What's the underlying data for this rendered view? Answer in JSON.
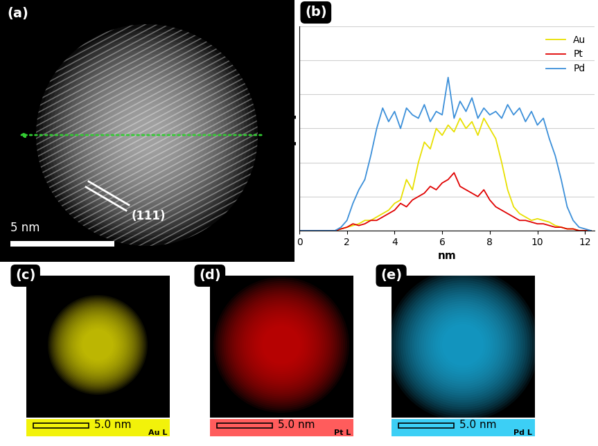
{
  "chart_data": {
    "type": "line",
    "title": "(b)",
    "x_label": "nm",
    "y_label": "[a.u.]",
    "x": [
      0,
      0.25,
      0.5,
      0.75,
      1.0,
      1.25,
      1.5,
      1.75,
      2.0,
      2.25,
      2.5,
      2.75,
      3.0,
      3.25,
      3.5,
      3.75,
      4.0,
      4.25,
      4.5,
      4.75,
      5.0,
      5.25,
      5.5,
      5.75,
      6.0,
      6.25,
      6.5,
      6.75,
      7.0,
      7.25,
      7.5,
      7.75,
      8.0,
      8.25,
      8.5,
      8.75,
      9.0,
      9.25,
      9.5,
      9.75,
      10.0,
      10.25,
      10.5,
      10.75,
      11.0,
      11.25,
      11.5,
      11.75,
      12.0,
      12.25
    ],
    "series": [
      {
        "name": "Au",
        "color": "#e8e000",
        "values": [
          0,
          0,
          0,
          0,
          0,
          0,
          0,
          0.05,
          0.1,
          0.15,
          0.2,
          0.3,
          0.3,
          0.4,
          0.5,
          0.6,
          0.8,
          0.9,
          1.5,
          1.2,
          2.0,
          2.6,
          2.4,
          3.0,
          2.8,
          3.1,
          2.9,
          3.3,
          3.0,
          3.2,
          2.8,
          3.3,
          3.0,
          2.7,
          2.0,
          1.2,
          0.7,
          0.5,
          0.4,
          0.3,
          0.35,
          0.3,
          0.25,
          0.15,
          0.1,
          0.05,
          0.05,
          0,
          0,
          0
        ]
      },
      {
        "name": "Pt",
        "color": "#e00000",
        "values": [
          0,
          0,
          0,
          0,
          0,
          0,
          0,
          0.05,
          0.1,
          0.2,
          0.15,
          0.2,
          0.3,
          0.3,
          0.4,
          0.5,
          0.6,
          0.8,
          0.7,
          0.9,
          1.0,
          1.1,
          1.3,
          1.2,
          1.4,
          1.5,
          1.7,
          1.3,
          1.2,
          1.1,
          1.0,
          1.2,
          0.9,
          0.7,
          0.6,
          0.5,
          0.4,
          0.3,
          0.3,
          0.25,
          0.2,
          0.2,
          0.15,
          0.1,
          0.1,
          0.05,
          0.05,
          0,
          0,
          0
        ]
      },
      {
        "name": "Pd",
        "color": "#3b8fd9",
        "values": [
          0,
          0,
          0,
          0,
          0,
          0,
          0,
          0.1,
          0.3,
          0.8,
          1.2,
          1.5,
          2.2,
          3.0,
          3.6,
          3.2,
          3.5,
          3.0,
          3.6,
          3.4,
          3.3,
          3.7,
          3.2,
          3.5,
          3.4,
          4.5,
          3.3,
          3.8,
          3.5,
          3.9,
          3.3,
          3.6,
          3.4,
          3.5,
          3.3,
          3.7,
          3.4,
          3.6,
          3.2,
          3.5,
          3.1,
          3.3,
          2.7,
          2.2,
          1.5,
          0.7,
          0.3,
          0.1,
          0.05,
          0
        ]
      }
    ],
    "xlim": [
      0,
      12.4
    ],
    "xticks": [
      0,
      2,
      4,
      6,
      8,
      10,
      12
    ],
    "ylim": [
      0,
      6
    ],
    "yticks": [
      0,
      1,
      2,
      3,
      4,
      5,
      6
    ],
    "grid": true,
    "legend": "upper right",
    "tick_labels": "x"
  },
  "image_panel": {
    "label": "(a)",
    "scale_bar": "5 nm",
    "annotation": "(111)"
  },
  "map_panels": [
    {
      "label": "(c)",
      "scale_bar": "5.0 nm",
      "element": "Au L"
    },
    {
      "label": "(d)",
      "scale_bar": "5.0 nm",
      "element": "Pt L"
    },
    {
      "label": "(e)",
      "scale_bar": "5.0 nm",
      "element": "Pd L"
    }
  ]
}
